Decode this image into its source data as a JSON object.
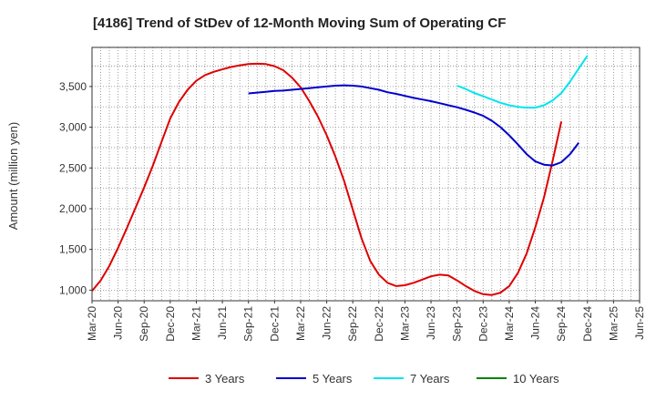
{
  "chart_data": {
    "type": "line",
    "title": "[4186]  Trend of StDev of 12-Month Moving Sum of Operating CF",
    "ylabel": "Amount (million yen)",
    "xlabel": "",
    "ylim": [
      870,
      3980
    ],
    "yticks": [
      1000,
      1500,
      2000,
      2500,
      3000,
      3500
    ],
    "ytick_labels": [
      "1,000",
      "1,500",
      "2,000",
      "2,500",
      "3,000",
      "3,500"
    ],
    "xticks": [
      "Mar-20",
      "Jun-20",
      "Sep-20",
      "Dec-20",
      "Mar-21",
      "Jun-21",
      "Sep-21",
      "Dec-21",
      "Mar-22",
      "Jun-22",
      "Sep-22",
      "Dec-22",
      "Mar-23",
      "Jun-23",
      "Sep-23",
      "Dec-23",
      "Mar-24",
      "Jun-24",
      "Sep-24",
      "Dec-24",
      "Mar-25",
      "Jun-25"
    ],
    "grid": true,
    "legend_position": "bottom",
    "series": [
      {
        "name": "3 Years",
        "color": "#dd0000",
        "start": "Mar-20",
        "values": [
          990,
          1120,
          1300,
          1520,
          1760,
          2010,
          2260,
          2530,
          2820,
          3110,
          3310,
          3460,
          3570,
          3640,
          3680,
          3710,
          3740,
          3760,
          3775,
          3780,
          3775,
          3750,
          3700,
          3610,
          3490,
          3320,
          3130,
          2900,
          2640,
          2340,
          1990,
          1640,
          1360,
          1190,
          1090,
          1050,
          1060,
          1090,
          1130,
          1170,
          1190,
          1180,
          1120,
          1050,
          990,
          950,
          940,
          970,
          1050,
          1210,
          1450,
          1770,
          2140,
          2590,
          3070
        ]
      },
      {
        "name": "5 Years",
        "color": "#0000cc",
        "start": "Sep-21",
        "values": [
          3415,
          3425,
          3435,
          3445,
          3450,
          3460,
          3470,
          3480,
          3490,
          3500,
          3510,
          3515,
          3510,
          3500,
          3480,
          3460,
          3430,
          3410,
          3385,
          3360,
          3340,
          3320,
          3295,
          3270,
          3245,
          3215,
          3180,
          3140,
          3080,
          3000,
          2900,
          2790,
          2670,
          2580,
          2540,
          2530,
          2570,
          2670,
          2810
        ]
      },
      {
        "name": "7 Years",
        "color": "#00e5ee",
        "start": "Sep-23",
        "values": [
          3510,
          3470,
          3420,
          3380,
          3340,
          3300,
          3270,
          3250,
          3240,
          3240,
          3270,
          3330,
          3420,
          3560,
          3720,
          3880
        ]
      },
      {
        "name": "10 Years",
        "color": "#008000",
        "start": "Sep-23",
        "values": []
      }
    ]
  }
}
